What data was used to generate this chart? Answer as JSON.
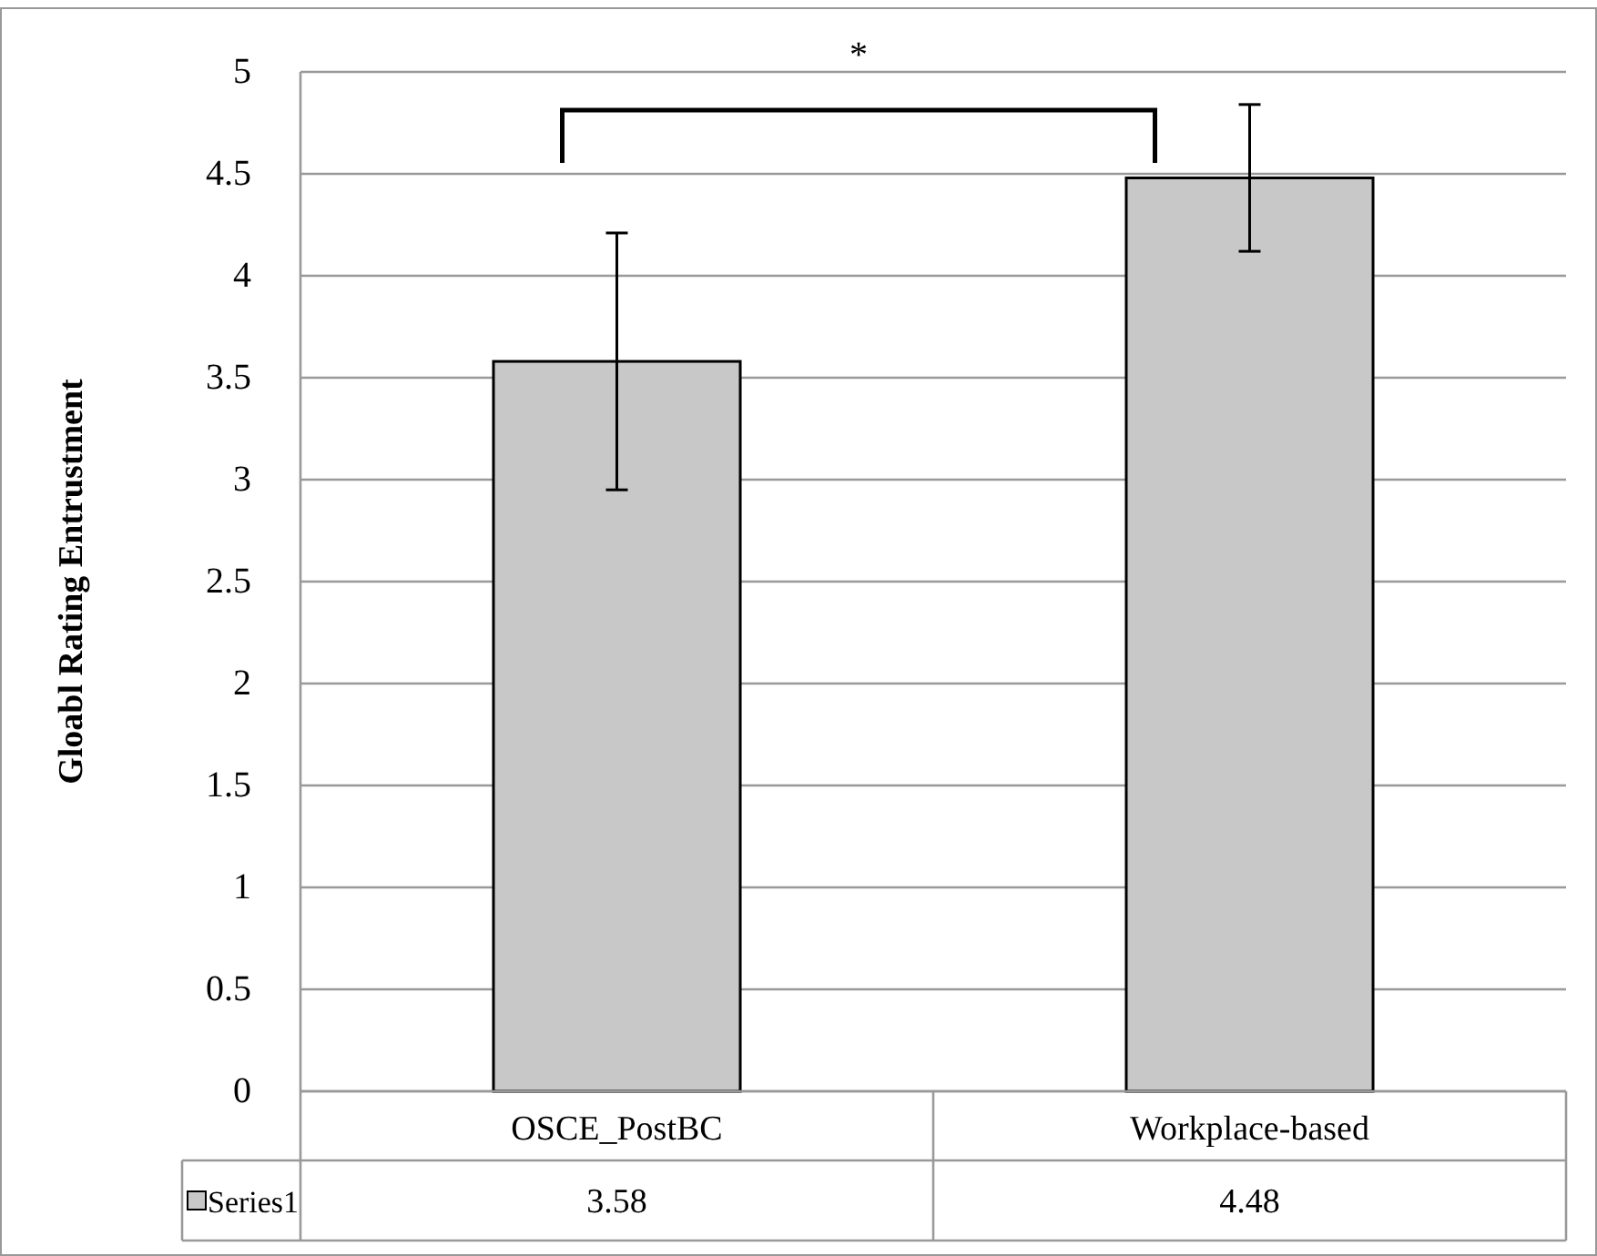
{
  "chart_data": {
    "type": "bar",
    "ylabel": "Gloabl Rating Entrustment",
    "categories": [
      "OSCE_PostBC",
      "Workplace-based"
    ],
    "series": [
      {
        "name": "Series1",
        "color": "#c8c8c8",
        "values": [
          3.58,
          4.48
        ],
        "errors": [
          0.63,
          0.36
        ]
      }
    ],
    "ylim": [
      0,
      5
    ],
    "yticks": [
      0,
      0.5,
      1,
      1.5,
      2,
      2.5,
      3,
      3.5,
      4,
      4.5,
      5
    ],
    "grid": "y",
    "legend": "bottom",
    "data_labels": true,
    "annotations": [
      "*"
    ]
  }
}
